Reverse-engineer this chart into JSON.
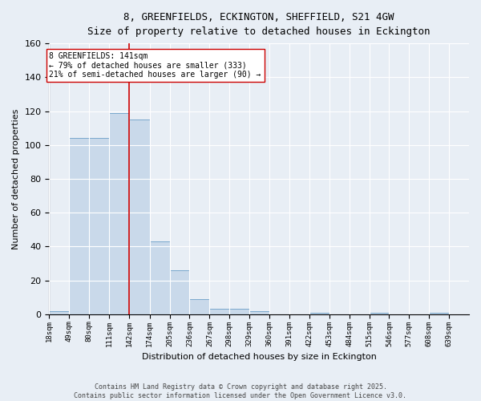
{
  "title_line1": "8, GREENFIELDS, ECKINGTON, SHEFFIELD, S21 4GW",
  "title_line2": "Size of property relative to detached houses in Eckington",
  "xlabel": "Distribution of detached houses by size in Eckington",
  "ylabel": "Number of detached properties",
  "bar_edges": [
    18,
    49,
    80,
    111,
    142,
    174,
    205,
    236,
    267,
    298,
    329,
    360,
    391,
    422,
    453,
    484,
    515,
    546,
    577,
    608,
    639
  ],
  "bar_heights": [
    2,
    104,
    104,
    119,
    115,
    43,
    26,
    9,
    3,
    3,
    2,
    0,
    0,
    1,
    0,
    0,
    1,
    0,
    0,
    1
  ],
  "bar_color": "#c9d9ea",
  "bar_edge_color": "#7aa8cc",
  "bar_linewidth": 0.7,
  "vline_x": 142,
  "vline_color": "#cc0000",
  "vline_linewidth": 1.2,
  "ylim": [
    0,
    160
  ],
  "yticks": [
    0,
    20,
    40,
    60,
    80,
    100,
    120,
    140,
    160
  ],
  "annotation_text": "8 GREENFIELDS: 141sqm\n← 79% of detached houses are smaller (333)\n21% of semi-detached houses are larger (90) →",
  "annotation_box_color": "#ffffff",
  "annotation_border_color": "#cc0000",
  "bg_color": "#e8eef5",
  "fig_bg_color": "#e8eef5",
  "grid_color": "#ffffff",
  "footer_line1": "Contains HM Land Registry data © Crown copyright and database right 2025.",
  "footer_line2": "Contains public sector information licensed under the Open Government Licence v3.0.",
  "tick_labels": [
    "18sqm",
    "49sqm",
    "80sqm",
    "111sqm",
    "142sqm",
    "174sqm",
    "205sqm",
    "236sqm",
    "267sqm",
    "298sqm",
    "329sqm",
    "360sqm",
    "391sqm",
    "422sqm",
    "453sqm",
    "484sqm",
    "515sqm",
    "546sqm",
    "577sqm",
    "608sqm",
    "639sqm"
  ]
}
